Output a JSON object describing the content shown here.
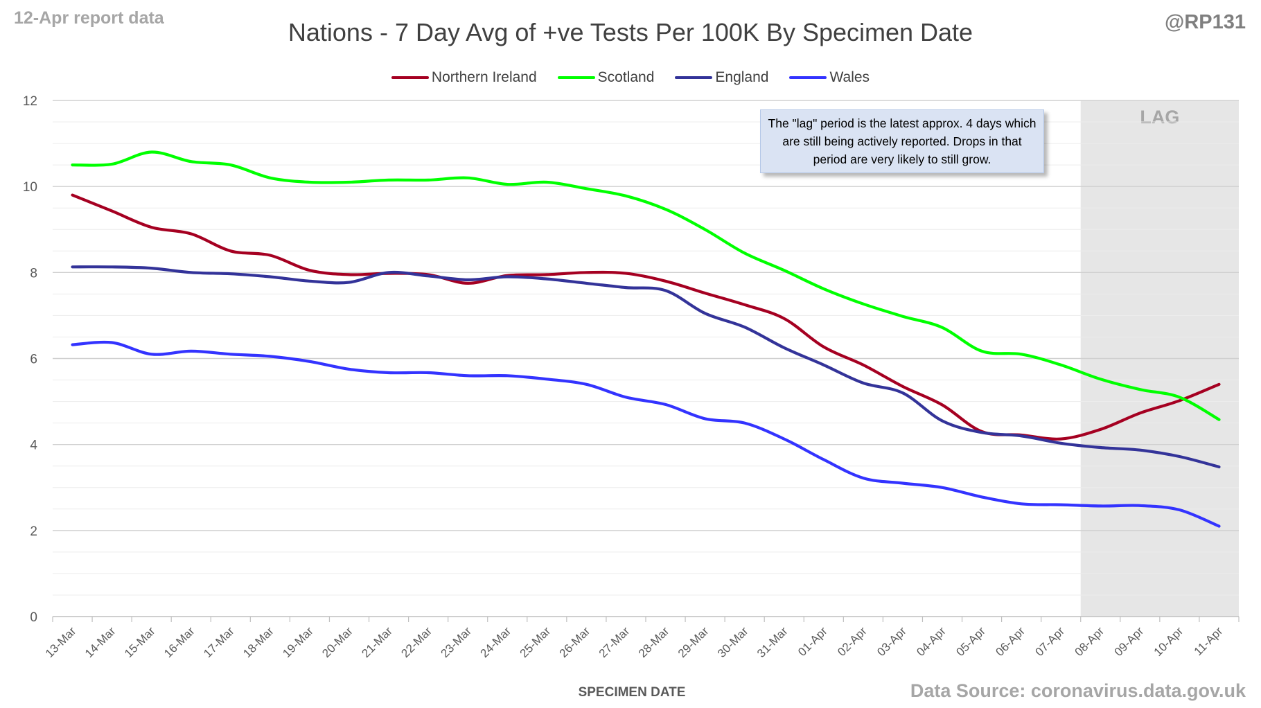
{
  "corner_left": "12-Apr report data",
  "corner_right": "@RP131",
  "source_text": "Data Source: coronavirus.data.gov.uk",
  "colors": {
    "northern_ireland": "#a50021",
    "scotland": "#00ff00",
    "england": "#333399",
    "wales": "#3333ff",
    "lag_shading": "#e6e6e6",
    "grid": "#d9d9d9"
  },
  "chart_data": {
    "type": "line",
    "title": "Nations - 7 Day Avg of +ve Tests Per 100K By Specimen Date",
    "xlabel": "SPECIMEN DATE",
    "ylabel": "",
    "ylim": [
      0,
      12
    ],
    "yticks": [
      0,
      2,
      4,
      6,
      8,
      10,
      12
    ],
    "grid": true,
    "legend_position": "top",
    "categories": [
      "13-Mar",
      "14-Mar",
      "15-Mar",
      "16-Mar",
      "17-Mar",
      "18-Mar",
      "19-Mar",
      "20-Mar",
      "21-Mar",
      "22-Mar",
      "23-Mar",
      "24-Mar",
      "25-Mar",
      "26-Mar",
      "27-Mar",
      "28-Mar",
      "29-Mar",
      "30-Mar",
      "31-Mar",
      "01-Apr",
      "02-Apr",
      "03-Apr",
      "04-Apr",
      "05-Apr",
      "06-Apr",
      "07-Apr",
      "08-Apr",
      "09-Apr",
      "10-Apr",
      "11-Apr"
    ],
    "series": [
      {
        "name": "Northern Ireland",
        "color": "#a50021",
        "values": [
          9.8,
          9.43,
          9.05,
          8.9,
          8.5,
          8.4,
          8.05,
          7.95,
          7.98,
          7.95,
          7.75,
          7.93,
          7.95,
          8.0,
          7.98,
          7.8,
          7.52,
          7.25,
          6.93,
          6.27,
          5.85,
          5.35,
          4.92,
          4.3,
          4.22,
          4.13,
          4.35,
          4.73,
          5.02,
          5.4
        ]
      },
      {
        "name": "Scotland",
        "color": "#00ff00",
        "values": [
          10.5,
          10.52,
          10.8,
          10.58,
          10.5,
          10.2,
          10.1,
          10.1,
          10.15,
          10.15,
          10.2,
          10.05,
          10.1,
          9.95,
          9.78,
          9.47,
          9.0,
          8.45,
          8.05,
          7.62,
          7.27,
          6.98,
          6.72,
          6.17,
          6.1,
          5.85,
          5.52,
          5.28,
          5.1,
          4.58
        ]
      },
      {
        "name": "England",
        "color": "#333399",
        "values": [
          8.13,
          8.13,
          8.1,
          8.0,
          7.97,
          7.9,
          7.8,
          7.77,
          8.0,
          7.92,
          7.83,
          7.9,
          7.85,
          7.75,
          7.65,
          7.58,
          7.05,
          6.73,
          6.25,
          5.85,
          5.43,
          5.2,
          4.55,
          4.28,
          4.2,
          4.03,
          3.93,
          3.87,
          3.72,
          3.48
        ]
      },
      {
        "name": "Wales",
        "color": "#3333ff",
        "values": [
          6.32,
          6.37,
          6.1,
          6.17,
          6.1,
          6.05,
          5.93,
          5.75,
          5.67,
          5.67,
          5.6,
          5.6,
          5.52,
          5.4,
          5.1,
          4.93,
          4.6,
          4.5,
          4.13,
          3.65,
          3.22,
          3.1,
          3.0,
          2.78,
          2.62,
          2.6,
          2.57,
          2.58,
          2.48,
          2.1
        ]
      }
    ],
    "lag_region": {
      "start": "08-Apr",
      "end": "11-Apr",
      "label": "LAG"
    },
    "annotation": "The \"lag\" period is the latest approx. 4 days which are still being actively reported. Drops in that period are very likely to still grow."
  }
}
